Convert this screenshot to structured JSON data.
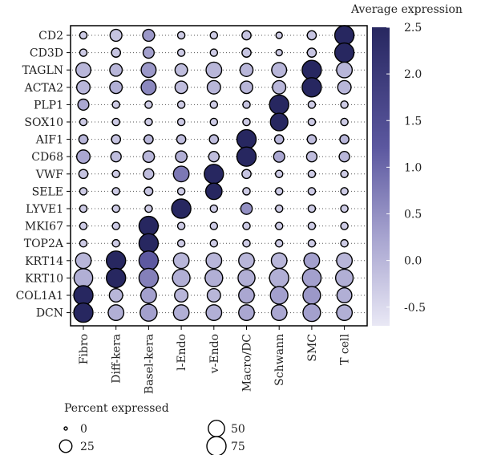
{
  "chart_data": {
    "type": "dotplot",
    "genes": [
      "CD2",
      "CD3D",
      "TAGLN",
      "ACTA2",
      "PLP1",
      "SOX10",
      "AIF1",
      "CD68",
      "VWF",
      "SELE",
      "LYVE1",
      "MKI67",
      "TOP2A",
      "KRT14",
      "KRT10",
      "COL1A1",
      "DCN"
    ],
    "cell_types": [
      "Fibro",
      "Diff-kera",
      "Basel-kera",
      "l-Endo",
      "v-Endo",
      "Macro/DC",
      "Schwann",
      "SMC",
      "T cell"
    ],
    "avg_expression": [
      [
        -0.3,
        -0.2,
        0.4,
        -0.3,
        -0.3,
        -0.2,
        -0.3,
        -0.2,
        2.5
      ],
      [
        -0.3,
        -0.2,
        0.3,
        -0.3,
        -0.3,
        -0.2,
        -0.3,
        -0.2,
        2.5
      ],
      [
        0.0,
        0.0,
        0.4,
        -0.1,
        0.0,
        0.0,
        0.0,
        2.5,
        0.0
      ],
      [
        0.0,
        0.1,
        0.6,
        -0.1,
        0.0,
        0.0,
        0.0,
        2.5,
        0.0
      ],
      [
        0.2,
        -0.3,
        -0.3,
        -0.3,
        -0.3,
        -0.2,
        2.5,
        -0.3,
        -0.3
      ],
      [
        -0.3,
        -0.3,
        -0.3,
        -0.3,
        -0.3,
        -0.3,
        2.5,
        -0.3,
        -0.3
      ],
      [
        0.0,
        -0.2,
        0.0,
        -0.1,
        -0.1,
        2.5,
        0.0,
        -0.1,
        0.0
      ],
      [
        0.2,
        -0.1,
        0.0,
        0.1,
        -0.1,
        2.5,
        0.2,
        -0.1,
        0.0
      ],
      [
        -0.2,
        -0.3,
        -0.1,
        0.8,
        2.5,
        -0.2,
        -0.3,
        -0.3,
        -0.3
      ],
      [
        -0.3,
        -0.3,
        -0.2,
        -0.3,
        2.5,
        -0.3,
        -0.3,
        -0.3,
        -0.3
      ],
      [
        -0.3,
        -0.3,
        -0.3,
        2.5,
        -0.3,
        0.5,
        -0.3,
        -0.3,
        -0.3
      ],
      [
        -0.3,
        -0.3,
        2.5,
        -0.3,
        -0.3,
        -0.3,
        -0.3,
        -0.3,
        -0.3
      ],
      [
        -0.3,
        -0.3,
        2.5,
        -0.3,
        -0.3,
        -0.3,
        -0.3,
        -0.3,
        -0.3
      ],
      [
        0.0,
        2.5,
        1.2,
        0.0,
        0.0,
        0.0,
        0.0,
        0.3,
        0.0
      ],
      [
        0.1,
        2.5,
        0.7,
        0.1,
        0.1,
        0.1,
        0.1,
        0.3,
        0.1
      ],
      [
        2.5,
        0.0,
        0.3,
        0.0,
        0.0,
        0.2,
        0.3,
        0.4,
        0.1
      ],
      [
        2.5,
        0.1,
        0.3,
        0.1,
        0.1,
        0.2,
        0.2,
        0.3,
        0.1
      ]
    ],
    "pct_expressed": [
      [
        5,
        22,
        22,
        5,
        5,
        10,
        3,
        10,
        75
      ],
      [
        5,
        10,
        18,
        5,
        5,
        10,
        3,
        10,
        75
      ],
      [
        40,
        25,
        40,
        25,
        45,
        28,
        40,
        75,
        45
      ],
      [
        30,
        25,
        40,
        25,
        30,
        25,
        30,
        75,
        30
      ],
      [
        18,
        5,
        5,
        5,
        5,
        5,
        75,
        5,
        5
      ],
      [
        5,
        5,
        5,
        5,
        5,
        5,
        60,
        5,
        5
      ],
      [
        10,
        10,
        10,
        10,
        10,
        75,
        10,
        10,
        10
      ],
      [
        30,
        15,
        20,
        20,
        15,
        75,
        18,
        15,
        15
      ],
      [
        10,
        5,
        15,
        45,
        75,
        10,
        5,
        5,
        5
      ],
      [
        5,
        5,
        8,
        5,
        50,
        5,
        5,
        5,
        5
      ],
      [
        5,
        5,
        5,
        75,
        5,
        20,
        5,
        5,
        5
      ],
      [
        5,
        5,
        75,
        5,
        5,
        5,
        5,
        5,
        5
      ],
      [
        5,
        5,
        75,
        5,
        5,
        5,
        5,
        5,
        5
      ],
      [
        45,
        75,
        75,
        45,
        45,
        45,
        45,
        45,
        45
      ],
      [
        70,
        75,
        75,
        60,
        60,
        55,
        75,
        70,
        60
      ],
      [
        75,
        30,
        45,
        30,
        30,
        45,
        60,
        60,
        40
      ],
      [
        75,
        45,
        55,
        45,
        45,
        45,
        45,
        60,
        45
      ]
    ],
    "colorbar": {
      "title": "Average expression",
      "range": [
        -0.7,
        2.5
      ],
      "ticks": [
        "2.5",
        "2.0",
        "1.5",
        "1.0",
        "0.5",
        "0.0",
        "-0.5"
      ],
      "tick_values": [
        2.5,
        2.0,
        1.5,
        1.0,
        0.5,
        0.0,
        -0.5
      ],
      "color_low": "#e9e8f5",
      "color_high": "#272760"
    },
    "size_legend": {
      "title": "Percent expressed",
      "labels": [
        "0",
        "25",
        "50",
        "75"
      ],
      "values": [
        0,
        25,
        50,
        75
      ]
    }
  }
}
